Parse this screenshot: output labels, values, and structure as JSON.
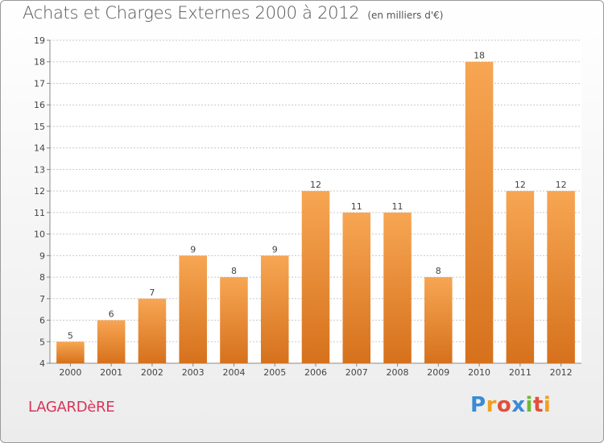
{
  "title": "Achats et Charges Externes 2000 à 2012",
  "unit": "(en milliers d'€)",
  "town": "LAGARDèRE",
  "brand": {
    "letters": [
      "P",
      "r",
      "o",
      "x",
      "i",
      "t",
      "i"
    ],
    "colors": [
      "#3a8bd4",
      "#f0a020",
      "#e0503a",
      "#3a8bd4",
      "#6fb83a",
      "#e0503a",
      "#f0a020"
    ]
  },
  "colors": {
    "bar_light": "#f7a653",
    "bar_dark": "#d6711c",
    "grid": "#c8c8c8",
    "axis": "#888888",
    "text": "#444444"
  },
  "chart_data": {
    "type": "bar",
    "categories": [
      "2000",
      "2001",
      "2002",
      "2003",
      "2004",
      "2005",
      "2006",
      "2007",
      "2008",
      "2009",
      "2010",
      "2011",
      "2012"
    ],
    "values": [
      5,
      6,
      7,
      9,
      8,
      9,
      12,
      11,
      11,
      8,
      18,
      12,
      12
    ],
    "yticks": [
      4,
      5,
      6,
      7,
      8,
      9,
      10,
      11,
      12,
      13,
      14,
      15,
      16,
      17,
      18,
      19
    ],
    "ylim": [
      4,
      19
    ],
    "grid": true,
    "title": "Achats et Charges Externes 2000 à 2012",
    "xlabel": "",
    "ylabel": ""
  }
}
